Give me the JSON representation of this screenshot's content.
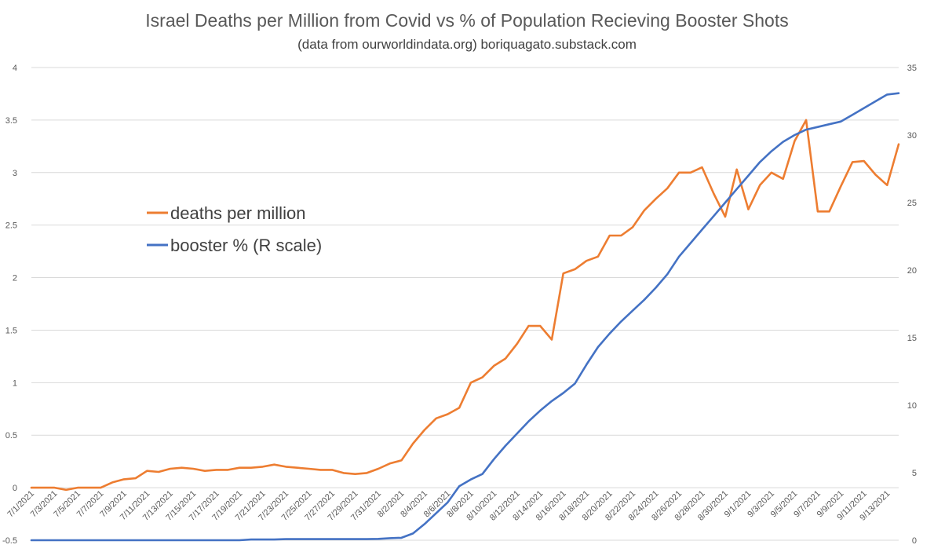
{
  "chart_data": {
    "type": "line",
    "title": "Israel Deaths per Million from Covid vs % of Population Recieving Booster Shots",
    "subtitle": "(data from ourworldindata.org)  boriquagato.substack.com",
    "x_tick_labels": [
      "7/1/2021",
      "7/3/2021",
      "7/5/2021",
      "7/7/2021",
      "7/9/2021",
      "7/11/2021",
      "7/13/2021",
      "7/15/2021",
      "7/17/2021",
      "7/19/2021",
      "7/21/2021",
      "7/23/2021",
      "7/25/2021",
      "7/27/2021",
      "7/29/2021",
      "7/31/2021",
      "8/2/2021",
      "8/4/2021",
      "8/6/2021",
      "8/8/2021",
      "8/10/2021",
      "8/12/2021",
      "8/14/2021",
      "8/16/2021",
      "8/18/2021",
      "8/20/2021",
      "8/22/2021",
      "8/24/2021",
      "8/26/2021",
      "8/28/2021",
      "8/30/2021",
      "9/1/2021",
      "9/3/2021",
      "9/5/2021",
      "9/7/2021",
      "9/9/2021",
      "9/11/2021",
      "9/13/2021"
    ],
    "y_left": {
      "min": -0.5,
      "max": 4,
      "ticks": [
        "-0.5",
        "0",
        "0.5",
        "1",
        "1.5",
        "2",
        "2.5",
        "3",
        "3.5",
        "4"
      ]
    },
    "y_right": {
      "min": 0,
      "max": 35,
      "ticks": [
        "0",
        "5",
        "10",
        "15",
        "20",
        "25",
        "30",
        "35"
      ]
    },
    "series": [
      {
        "name": "deaths per million",
        "axis": "left",
        "color": "#ed7d31",
        "values": [
          0,
          0,
          0,
          -0.02,
          0,
          0,
          0,
          0.05,
          0.08,
          0.09,
          0.16,
          0.15,
          0.18,
          0.19,
          0.18,
          0.16,
          0.17,
          0.17,
          0.19,
          0.19,
          0.2,
          0.22,
          0.2,
          0.19,
          0.18,
          0.17,
          0.17,
          0.14,
          0.13,
          0.14,
          0.18,
          0.23,
          0.26,
          0.42,
          0.55,
          0.66,
          0.7,
          0.76,
          1.0,
          1.05,
          1.16,
          1.23,
          1.37,
          1.54,
          1.54,
          1.41,
          2.04,
          2.08,
          2.16,
          2.2,
          2.4,
          2.4,
          2.48,
          2.64,
          2.75,
          2.85,
          3.0,
          3.0,
          3.05,
          2.8,
          2.58,
          3.03,
          2.65,
          2.88,
          3.0,
          2.94,
          3.3,
          3.5,
          2.63,
          2.63,
          2.87,
          3.1,
          3.11,
          2.98,
          2.88,
          3.27
        ]
      },
      {
        "name": "booster % (R scale)",
        "axis": "right",
        "color": "#4472c4",
        "values": [
          0,
          0,
          0,
          0,
          0,
          0,
          0,
          0,
          0,
          0,
          0,
          0,
          0,
          0,
          0,
          0,
          0,
          0,
          0,
          0.05,
          0.05,
          0.05,
          0.08,
          0.08,
          0.08,
          0.08,
          0.08,
          0.08,
          0.08,
          0.08,
          0.1,
          0.15,
          0.18,
          0.5,
          1.2,
          2.0,
          2.8,
          4.0,
          4.5,
          4.9,
          6.0,
          7.0,
          7.9,
          8.8,
          9.6,
          10.3,
          10.9,
          11.6,
          13.0,
          14.3,
          15.3,
          16.2,
          17.0,
          17.8,
          18.7,
          19.7,
          21.0,
          22.0,
          23.0,
          24.0,
          25.0,
          26.0,
          27.0,
          28.0,
          28.8,
          29.5,
          30.0,
          30.4,
          30.6,
          30.8,
          31.0,
          31.5,
          32.0,
          32.5,
          33.0,
          33.1
        ]
      }
    ],
    "legend": [
      "deaths per million",
      "booster % (R scale)"
    ],
    "legend_position": "center-left",
    "grid": true
  }
}
